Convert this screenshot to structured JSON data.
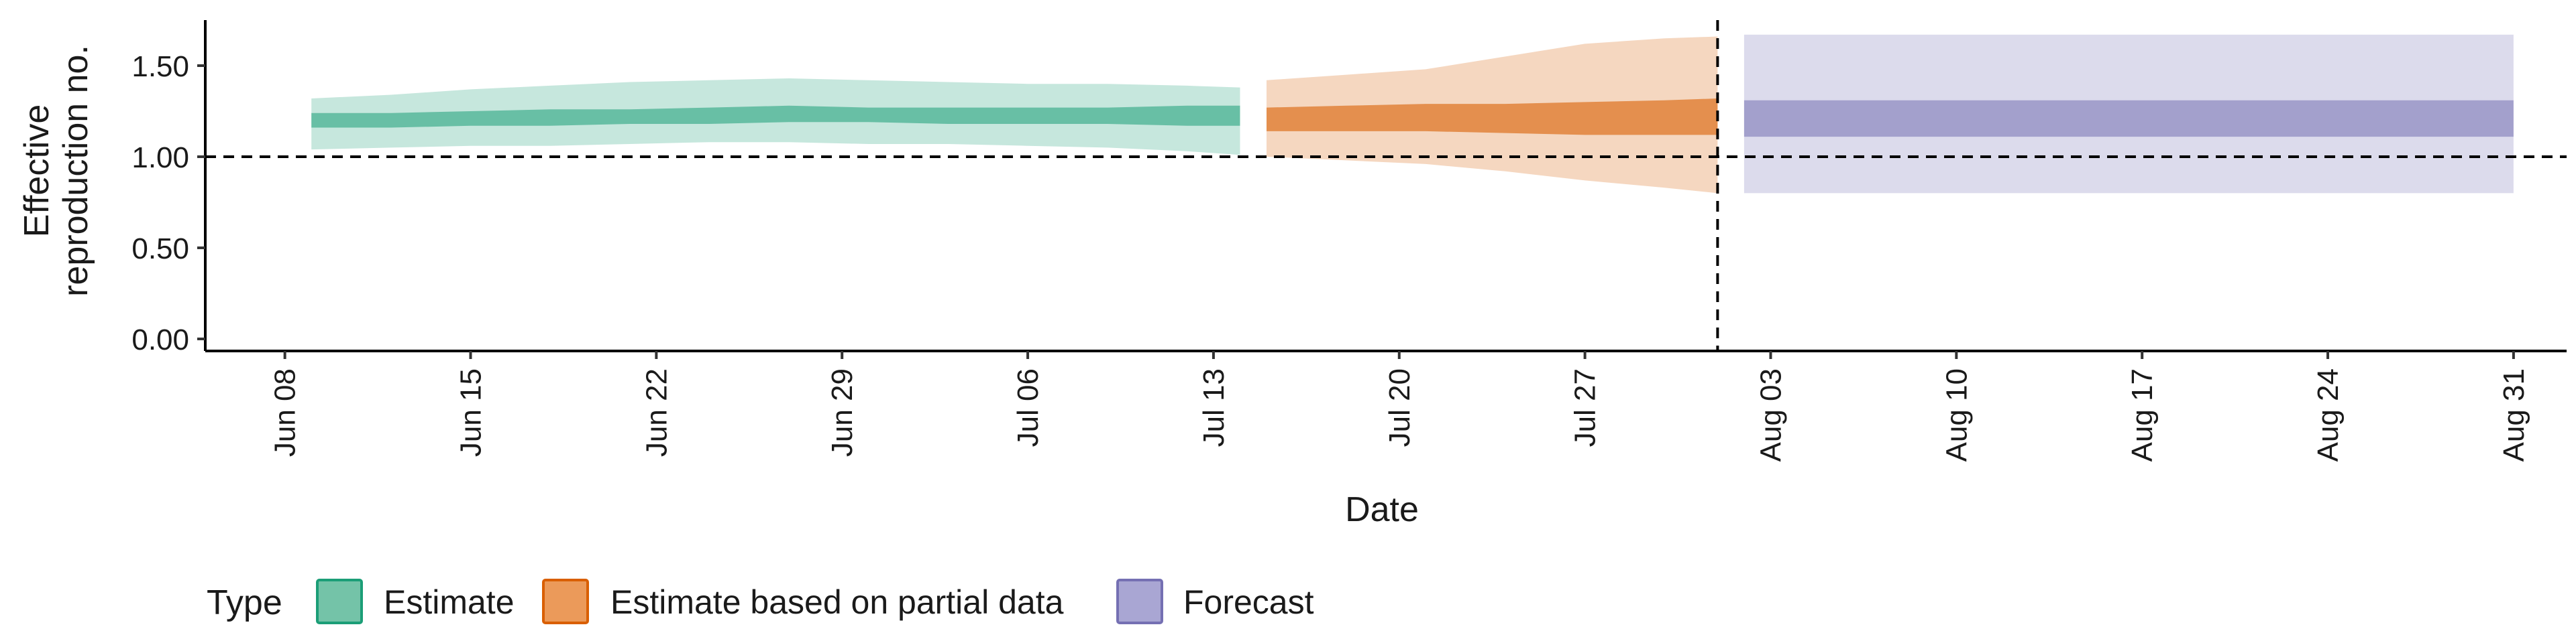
{
  "chart_data": {
    "type": "area",
    "xlabel": "Date",
    "ylabel_lines": [
      "Effective",
      "reproduction no."
    ],
    "ylim": [
      0,
      1.75
    ],
    "y_ticks": [
      0.0,
      0.5,
      1.0,
      1.5
    ],
    "y_tick_labels": [
      "0.00",
      "0.50",
      "1.00",
      "1.50"
    ],
    "xlim": [
      "2020-06-05",
      "2020-09-02"
    ],
    "x_ticks": [
      "2020-06-08",
      "2020-06-15",
      "2020-06-22",
      "2020-06-29",
      "2020-07-06",
      "2020-07-13",
      "2020-07-20",
      "2020-07-27",
      "2020-08-03",
      "2020-08-10",
      "2020-08-17",
      "2020-08-24",
      "2020-08-31"
    ],
    "x_tick_labels": [
      "Jun 08",
      "Jun 15",
      "Jun 22",
      "Jun 29",
      "Jul 06",
      "Jul 13",
      "Jul 20",
      "Jul 27",
      "Aug 03",
      "Aug 10",
      "Aug 17",
      "Aug 24",
      "Aug 31"
    ],
    "reference_hline": 1.0,
    "reference_vline": "2020-08-01",
    "grid": false,
    "legend": {
      "title": "Type",
      "position": "bottom-left",
      "entries": [
        {
          "label": "Estimate",
          "fill": "#74c3a8",
          "stroke": "#1b9e77"
        },
        {
          "label": "Estimate based on partial data",
          "fill": "#eb9a5a",
          "stroke": "#d95f02"
        },
        {
          "label": "Forecast",
          "fill": "#a9a6d3",
          "stroke": "#7570b3"
        }
      ]
    },
    "series": [
      {
        "name": "Estimate",
        "color": "#1b9e77",
        "outer_alpha": 0.25,
        "inner_alpha": 0.55,
        "x": [
          "2020-06-09",
          "2020-06-12",
          "2020-06-15",
          "2020-06-18",
          "2020-06-21",
          "2020-06-24",
          "2020-06-27",
          "2020-06-30",
          "2020-07-03",
          "2020-07-06",
          "2020-07-09",
          "2020-07-12",
          "2020-07-14"
        ],
        "outer_lower": [
          1.04,
          1.05,
          1.06,
          1.06,
          1.07,
          1.08,
          1.08,
          1.07,
          1.07,
          1.06,
          1.05,
          1.03,
          1.01
        ],
        "outer_upper": [
          1.32,
          1.34,
          1.37,
          1.39,
          1.41,
          1.42,
          1.43,
          1.42,
          1.41,
          1.4,
          1.4,
          1.39,
          1.38
        ],
        "inner_lower": [
          1.16,
          1.16,
          1.17,
          1.17,
          1.18,
          1.18,
          1.19,
          1.19,
          1.18,
          1.18,
          1.18,
          1.17,
          1.17
        ],
        "inner_upper": [
          1.24,
          1.24,
          1.25,
          1.26,
          1.26,
          1.27,
          1.28,
          1.27,
          1.27,
          1.27,
          1.27,
          1.28,
          1.28
        ]
      },
      {
        "name": "Estimate based on partial data",
        "color": "#d95f02",
        "outer_alpha": 0.25,
        "inner_alpha": 0.6,
        "x": [
          "2020-07-15",
          "2020-07-18",
          "2020-07-21",
          "2020-07-24",
          "2020-07-27",
          "2020-07-30",
          "2020-08-01"
        ],
        "outer_lower": [
          1.0,
          0.98,
          0.96,
          0.92,
          0.87,
          0.83,
          0.8
        ],
        "outer_upper": [
          1.42,
          1.45,
          1.48,
          1.55,
          1.62,
          1.65,
          1.66
        ],
        "inner_lower": [
          1.14,
          1.14,
          1.14,
          1.13,
          1.12,
          1.12,
          1.12
        ],
        "inner_upper": [
          1.27,
          1.28,
          1.29,
          1.29,
          1.3,
          1.31,
          1.32
        ]
      },
      {
        "name": "Forecast",
        "color": "#7570b3",
        "outer_alpha": 0.25,
        "inner_alpha": 0.55,
        "x": [
          "2020-08-02",
          "2020-08-31"
        ],
        "outer_lower": [
          0.8,
          0.8
        ],
        "outer_upper": [
          1.67,
          1.67
        ],
        "inner_lower": [
          1.11,
          1.11
        ],
        "inner_upper": [
          1.31,
          1.31
        ]
      }
    ]
  }
}
